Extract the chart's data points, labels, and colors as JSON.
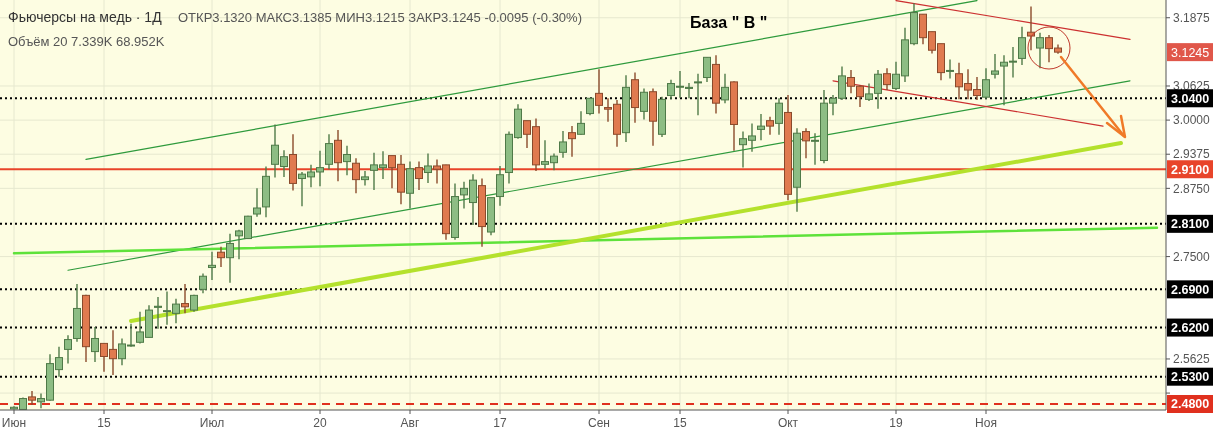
{
  "chart_data": {
    "type": "candlestick",
    "title": "Фьючерсы на медь · 1Д",
    "subtitle": "ОТКР3.1320 МАКС3.1385 МИН3.1215 ЗАКР3.1245 -0.0095 (-0.30%)",
    "annotations": [
      "База  \" В \"",
      "Объём 20 7.339K 68.952K",
      "3.1245"
    ],
    "categories": [
      "Июн",
      null,
      null,
      null,
      null,
      null,
      null,
      null,
      null,
      null,
      "15",
      null,
      null,
      null,
      null,
      null,
      null,
      null,
      null,
      null,
      null,
      null,
      "Июл",
      null,
      null,
      null,
      null,
      null,
      null,
      null,
      null,
      null,
      null,
      null,
      "20",
      null,
      null,
      null,
      null,
      null,
      null,
      null,
      null,
      null,
      "Авг",
      null,
      null,
      null,
      null,
      null,
      null,
      null,
      null,
      null,
      "17",
      null,
      null,
      null,
      null,
      null,
      null,
      null,
      null,
      null,
      null,
      "Сен",
      null,
      null,
      null,
      null,
      null,
      null,
      null,
      null,
      "15",
      null,
      null,
      null,
      null,
      null,
      null,
      null,
      null,
      null,
      null,
      null,
      "Окт",
      null,
      null,
      null,
      null,
      null,
      null,
      null,
      null,
      null,
      null,
      null,
      "19",
      null,
      null,
      null,
      null,
      null,
      null,
      null,
      null,
      null,
      "Ноя",
      null,
      null,
      null,
      null,
      null,
      null,
      null,
      null,
      null,
      null,
      null,
      null,
      null,
      null,
      null,
      null,
      null,
      null,
      null
    ],
    "ohlc": [
      [
        2.471,
        2.476,
        2.47,
        2.474
      ],
      [
        2.47,
        2.492,
        2.47,
        2.49
      ],
      [
        2.493,
        2.504,
        2.478,
        2.487
      ],
      [
        2.484,
        2.499,
        2.472,
        2.49
      ],
      [
        2.487,
        2.571,
        2.486,
        2.554
      ],
      [
        2.543,
        2.585,
        2.53,
        2.565
      ],
      [
        2.58,
        2.606,
        2.554,
        2.598
      ],
      [
        2.6,
        2.7,
        2.594,
        2.655
      ],
      [
        2.679,
        2.68,
        2.557,
        2.585
      ],
      [
        2.576,
        2.621,
        2.557,
        2.6
      ],
      [
        2.591,
        2.591,
        2.539,
        2.567
      ],
      [
        2.58,
        2.615,
        2.533,
        2.563
      ],
      [
        2.563,
        2.6,
        2.551,
        2.59
      ],
      [
        2.587,
        2.627,
        2.585,
        2.588
      ],
      [
        2.593,
        2.649,
        2.591,
        2.612
      ],
      [
        2.602,
        2.661,
        2.602,
        2.652
      ],
      [
        2.657,
        2.676,
        2.618,
        2.659
      ],
      [
        2.65,
        2.686,
        2.625,
        2.651
      ],
      [
        2.646,
        2.673,
        2.628,
        2.663
      ],
      [
        2.664,
        2.7,
        2.646,
        2.658
      ],
      [
        2.652,
        2.68,
        2.649,
        2.679
      ],
      [
        2.69,
        2.719,
        2.683,
        2.714
      ],
      [
        2.73,
        2.759,
        2.707,
        2.734
      ],
      [
        2.758,
        2.768,
        2.731,
        2.748
      ],
      [
        2.748,
        2.792,
        2.702,
        2.774
      ],
      [
        2.788,
        2.799,
        2.745,
        2.797
      ],
      [
        2.783,
        2.825,
        2.782,
        2.824
      ],
      [
        2.828,
        2.875,
        2.823,
        2.839
      ],
      [
        2.841,
        2.915,
        2.822,
        2.897
      ],
      [
        2.919,
        2.992,
        2.895,
        2.954
      ],
      [
        2.915,
        2.945,
        2.896,
        2.933
      ],
      [
        2.937,
        2.974,
        2.871,
        2.884
      ],
      [
        2.893,
        2.905,
        2.842,
        2.901
      ],
      [
        2.896,
        2.918,
        2.877,
        2.905
      ],
      [
        2.905,
        2.944,
        2.879,
        2.913
      ],
      [
        2.919,
        2.974,
        2.91,
        2.957
      ],
      [
        2.963,
        2.982,
        2.888,
        2.922
      ],
      [
        2.924,
        2.953,
        2.899,
        2.937
      ],
      [
        2.921,
        2.93,
        2.866,
        2.891
      ],
      [
        2.891,
        2.907,
        2.88,
        2.896
      ],
      [
        2.908,
        2.94,
        2.872,
        2.918
      ],
      [
        2.913,
        2.943,
        2.892,
        2.918
      ],
      [
        2.935,
        2.935,
        2.875,
        2.913
      ],
      [
        2.919,
        2.936,
        2.846,
        2.868
      ],
      [
        2.866,
        2.924,
        2.838,
        2.911
      ],
      [
        2.913,
        2.924,
        2.872,
        2.893
      ],
      [
        2.904,
        2.939,
        2.885,
        2.916
      ],
      [
        2.916,
        2.928,
        2.884,
        2.91
      ],
      [
        2.918,
        2.918,
        2.781,
        2.792
      ],
      [
        2.785,
        2.884,
        2.781,
        2.86
      ],
      [
        2.863,
        2.887,
        2.838,
        2.875
      ],
      [
        2.849,
        2.901,
        2.808,
        2.89
      ],
      [
        2.88,
        2.893,
        2.768,
        2.805
      ],
      [
        2.795,
        2.858,
        2.789,
        2.858
      ],
      [
        2.86,
        2.916,
        2.843,
        2.9
      ],
      [
        2.904,
        2.979,
        2.884,
        2.974
      ],
      [
        2.968,
        3.029,
        2.966,
        3.02
      ],
      [
        2.999,
        2.999,
        2.949,
        2.974
      ],
      [
        2.988,
        3.003,
        2.907,
        2.918
      ],
      [
        2.919,
        2.963,
        2.911,
        2.924
      ],
      [
        2.922,
        2.939,
        2.908,
        2.934
      ],
      [
        2.941,
        2.98,
        2.931,
        2.96
      ],
      [
        2.977,
        2.989,
        2.933,
        2.966
      ],
      [
        2.974,
        3.016,
        2.973,
        2.994
      ],
      [
        3.012,
        3.04,
        3.009,
        3.04
      ],
      [
        3.049,
        3.093,
        3.012,
        3.027
      ],
      [
        3.023,
        3.04,
        2.997,
        3.02
      ],
      [
        3.029,
        3.037,
        2.951,
        2.974
      ],
      [
        2.977,
        3.082,
        2.96,
        3.06
      ],
      [
        3.074,
        3.087,
        2.995,
        3.023
      ],
      [
        3.016,
        3.058,
        3.001,
        3.051
      ],
      [
        3.052,
        3.058,
        2.953,
        2.998
      ],
      [
        2.974,
        3.043,
        2.969,
        3.038
      ],
      [
        3.045,
        3.074,
        3.038,
        3.067
      ],
      [
        3.061,
        3.09,
        3.041,
        3.062
      ],
      [
        3.058,
        3.068,
        3.04,
        3.06
      ],
      [
        3.069,
        3.085,
        3.009,
        3.07
      ],
      [
        3.078,
        3.115,
        3.07,
        3.115
      ],
      [
        3.102,
        3.119,
        3.012,
        3.031
      ],
      [
        3.037,
        3.085,
        3.031,
        3.06
      ],
      [
        3.07,
        3.071,
        2.944,
        2.992
      ],
      [
        2.955,
        2.979,
        2.913,
        2.966
      ],
      [
        2.963,
        2.994,
        2.942,
        2.971
      ],
      [
        2.983,
        3.011,
        2.963,
        2.989
      ],
      [
        2.999,
        3.006,
        2.973,
        2.989
      ],
      [
        2.994,
        3.04,
        2.973,
        3.031
      ],
      [
        3.014,
        3.046,
        2.853,
        2.864
      ],
      [
        2.877,
        2.985,
        2.832,
        2.976
      ],
      [
        2.979,
        2.985,
        2.93,
        2.962
      ],
      [
        2.963,
        2.976,
        2.918,
        2.963
      ],
      [
        2.926,
        3.055,
        2.921,
        3.031
      ],
      [
        3.031,
        3.046,
        3.009,
        3.04
      ],
      [
        3.04,
        3.098,
        3.037,
        3.081
      ],
      [
        3.078,
        3.092,
        3.049,
        3.062
      ],
      [
        3.062,
        3.064,
        3.024,
        3.043
      ],
      [
        3.038,
        3.067,
        3.035,
        3.048
      ],
      [
        3.049,
        3.092,
        3.021,
        3.084
      ],
      [
        3.085,
        3.095,
        3.055,
        3.065
      ],
      [
        3.058,
        3.107,
        3.055,
        3.084
      ],
      [
        3.081,
        3.169,
        3.07,
        3.147
      ],
      [
        3.14,
        3.214,
        3.137,
        3.197
      ],
      [
        3.194,
        3.194,
        3.139,
        3.151
      ],
      [
        3.162,
        3.162,
        3.122,
        3.128
      ],
      [
        3.14,
        3.14,
        3.073,
        3.087
      ],
      [
        3.09,
        3.111,
        3.076,
        3.091
      ],
      [
        3.085,
        3.105,
        3.038,
        3.061
      ],
      [
        3.067,
        3.093,
        3.038,
        3.055
      ],
      [
        3.056,
        3.079,
        3.037,
        3.045
      ],
      [
        3.042,
        3.095,
        3.038,
        3.074
      ],
      [
        3.084,
        3.121,
        3.076,
        3.09
      ],
      [
        3.099,
        3.119,
        3.027,
        3.106
      ],
      [
        3.107,
        3.134,
        3.078,
        3.108
      ],
      [
        3.113,
        3.171,
        3.101,
        3.151
      ],
      [
        3.161,
        3.208,
        3.128,
        3.154
      ],
      [
        3.132,
        3.16,
        3.095,
        3.151
      ],
      [
        3.151,
        3.156,
        3.106,
        3.131
      ],
      [
        3.132,
        3.1385,
        3.1215,
        3.1245
      ],
      null,
      null,
      null,
      null,
      null,
      null,
      null,
      null,
      null,
      null,
      null
    ],
    "series": [
      {
        "type": "line",
        "color": "#2e9a3c",
        "values": [
          null,
          null,
          null,
          null,
          null,
          null,
          null,
          null,
          2.928,
          null,
          null,
          null,
          null,
          null,
          null,
          null,
          null,
          null,
          null,
          null,
          null,
          null,
          null,
          null,
          null,
          null,
          null,
          null,
          null,
          null,
          null,
          null,
          null,
          null,
          null,
          null,
          null,
          null,
          null,
          null,
          null,
          null,
          null,
          null,
          null,
          null,
          null,
          null,
          null,
          null,
          null,
          null,
          null,
          null,
          null,
          null,
          null,
          null,
          null,
          null,
          null,
          null,
          null,
          null,
          null,
          null,
          null,
          null,
          null,
          null,
          null,
          null,
          null,
          null,
          null,
          null,
          null,
          null,
          null,
          null,
          null,
          null,
          null,
          null,
          null,
          null,
          null,
          null,
          null,
          null,
          null,
          null,
          null,
          null,
          null,
          null,
          null,
          null,
          null,
          null,
          null,
          null,
          null,
          null,
          null,
          null,
          null,
          3.219,
          null,
          null,
          null,
          null,
          null,
          null,
          null,
          null,
          null,
          null,
          null,
          null,
          null,
          null,
          null,
          null,
          null,
          null,
          null,
          null
        ]
      },
      {
        "type": "line",
        "color": "#2e9a3c",
        "values": [
          null,
          null,
          null,
          null,
          null,
          null,
          2.725,
          null,
          null,
          null,
          null,
          null,
          null,
          null,
          null,
          null,
          null,
          null,
          null,
          null,
          null,
          null,
          null,
          null,
          null,
          null,
          null,
          null,
          null,
          null,
          null,
          null,
          null,
          null,
          null,
          null,
          null,
          null,
          null,
          null,
          null,
          null,
          null,
          null,
          null,
          null,
          null,
          null,
          null,
          null,
          null,
          null,
          null,
          null,
          null,
          null,
          null,
          null,
          null,
          null,
          null,
          null,
          null,
          null,
          null,
          null,
          null,
          null,
          null,
          null,
          null,
          null,
          null,
          null,
          null,
          null,
          null,
          null,
          null,
          null,
          null,
          null,
          null,
          null,
          null,
          null,
          null,
          null,
          null,
          null,
          null,
          null,
          null,
          null,
          null,
          null,
          null,
          null,
          null,
          null,
          null,
          null,
          null,
          null,
          null,
          null,
          null,
          null,
          null,
          null,
          null,
          null,
          null,
          null,
          null,
          null,
          null,
          null,
          null,
          null,
          null,
          null,
          null,
          null,
          3.072,
          null,
          null,
          null
        ]
      },
      {
        "type": "line",
        "color": "#5ee23a",
        "values": [
          2.756,
          null,
          null,
          null,
          null,
          null,
          null,
          null,
          null,
          null,
          null,
          null,
          null,
          null,
          null,
          null,
          null,
          null,
          null,
          null,
          null,
          null,
          null,
          null,
          null,
          null,
          null,
          null,
          null,
          null,
          null,
          null,
          null,
          null,
          null,
          null,
          null,
          null,
          null,
          null,
          null,
          null,
          null,
          null,
          null,
          null,
          null,
          null,
          null,
          null,
          null,
          null,
          null,
          null,
          null,
          null,
          null,
          null,
          null,
          null,
          null,
          null,
          null,
          null,
          null,
          null,
          null,
          null,
          null,
          null,
          null,
          null,
          null,
          null,
          null,
          null,
          null,
          null,
          null,
          null,
          null,
          null,
          null,
          null,
          null,
          null,
          null,
          null,
          null,
          null,
          null,
          null,
          null,
          null,
          null,
          null,
          null,
          null,
          null,
          null,
          null,
          null,
          null,
          null,
          null,
          null,
          null,
          null,
          null,
          null,
          null,
          null,
          null,
          null,
          null,
          null,
          null,
          null,
          null,
          null,
          null,
          null,
          null,
          null,
          null,
          null,
          null,
          2.803
        ]
      },
      {
        "type": "line",
        "color": "#b4e12c",
        "values": [
          null,
          null,
          null,
          null,
          null,
          null,
          null,
          null,
          null,
          null,
          null,
          null,
          null,
          2.632,
          null,
          null,
          null,
          null,
          null,
          null,
          null,
          null,
          null,
          null,
          null,
          null,
          null,
          null,
          null,
          null,
          null,
          null,
          null,
          null,
          null,
          null,
          null,
          null,
          null,
          null,
          null,
          null,
          null,
          null,
          null,
          null,
          null,
          null,
          null,
          null,
          null,
          null,
          null,
          null,
          null,
          null,
          null,
          null,
          null,
          null,
          null,
          null,
          null,
          null,
          null,
          null,
          null,
          null,
          null,
          null,
          null,
          null,
          null,
          null,
          null,
          null,
          null,
          null,
          null,
          null,
          null,
          null,
          null,
          null,
          null,
          null,
          null,
          null,
          null,
          null,
          null,
          null,
          null,
          null,
          null,
          null,
          null,
          null,
          null,
          null,
          null,
          null,
          null,
          null,
          null,
          null,
          null,
          null,
          null,
          null,
          null,
          null,
          null,
          null,
          null,
          null,
          null,
          null,
          null,
          null,
          null,
          null,
          null,
          2.958,
          null,
          null,
          null,
          null
        ]
      },
      {
        "type": "line",
        "color": "#cc3030",
        "values": [
          null,
          null,
          null,
          null,
          null,
          null,
          null,
          null,
          null,
          null,
          null,
          null,
          null,
          null,
          null,
          null,
          null,
          null,
          null,
          null,
          null,
          null,
          null,
          null,
          null,
          null,
          null,
          null,
          null,
          null,
          null,
          null,
          null,
          null,
          null,
          null,
          null,
          null,
          null,
          null,
          null,
          null,
          null,
          null,
          null,
          null,
          null,
          null,
          null,
          null,
          null,
          null,
          null,
          null,
          null,
          null,
          null,
          null,
          null,
          null,
          null,
          null,
          null,
          null,
          null,
          null,
          null,
          null,
          null,
          null,
          null,
          null,
          null,
          null,
          null,
          null,
          null,
          null,
          null,
          null,
          null,
          null,
          null,
          null,
          null,
          null,
          null,
          null,
          null,
          null,
          null,
          null,
          null,
          null,
          null,
          null,
          null,
          null,
          3.219,
          null,
          null,
          null,
          null,
          null,
          null,
          null,
          null,
          null,
          null,
          null,
          null,
          null,
          null,
          null,
          null,
          null,
          null,
          null,
          null,
          null,
          null,
          null,
          null,
          null,
          3.148,
          null,
          null,
          null
        ]
      },
      {
        "type": "line",
        "color": "#cc3030",
        "values": [
          null,
          null,
          null,
          null,
          null,
          null,
          null,
          null,
          null,
          null,
          null,
          null,
          null,
          null,
          null,
          null,
          null,
          null,
          null,
          null,
          null,
          null,
          null,
          null,
          null,
          null,
          null,
          null,
          null,
          null,
          null,
          null,
          null,
          null,
          null,
          null,
          null,
          null,
          null,
          null,
          null,
          null,
          null,
          null,
          null,
          null,
          null,
          null,
          null,
          null,
          null,
          null,
          null,
          null,
          null,
          null,
          null,
          null,
          null,
          null,
          null,
          null,
          null,
          null,
          null,
          null,
          null,
          null,
          null,
          null,
          null,
          null,
          null,
          null,
          null,
          null,
          null,
          null,
          null,
          null,
          null,
          null,
          null,
          null,
          null,
          null,
          null,
          null,
          null,
          null,
          null,
          3.072,
          null,
          null,
          null,
          null,
          null,
          null,
          null,
          null,
          null,
          null,
          null,
          null,
          null,
          null,
          null,
          null,
          null,
          null,
          null,
          null,
          null,
          null,
          null,
          null,
          null,
          null,
          null,
          null,
          null,
          2.989,
          null,
          null,
          null,
          null,
          null,
          null
        ]
      }
    ],
    "ylim": [
      2.469,
      3.22
    ],
    "yticks": [
      {
        "value": 2.5,
        "label": null
      },
      {
        "value": 2.5625,
        "label": "2.5625"
      },
      {
        "value": 2.75,
        "label": "2.7500"
      },
      {
        "value": 2.875,
        "label": "2.8750"
      },
      {
        "value": 2.9375,
        "label": "2.9375"
      },
      {
        "value": 3,
        "label": "3.0000"
      },
      {
        "value": 3.0625,
        "label": "3.0625"
      },
      {
        "value": 3.1875,
        "label": "3.1875"
      }
    ],
    "grid": true,
    "ref_lines": [
      {
        "axis": "y",
        "value": 3.04,
        "label": "3.0400",
        "color": "#000000",
        "line_style": "dotted"
      },
      {
        "axis": "y",
        "value": 2.91,
        "label": "2.9100",
        "color": "#e8442a",
        "line_style": "solid"
      },
      {
        "axis": "y",
        "value": 2.81,
        "label": "2.8100",
        "color": "#000000",
        "line_style": "dotted"
      },
      {
        "axis": "y",
        "value": 2.69,
        "label": "2.6900",
        "color": "#000000",
        "line_style": "dotted"
      },
      {
        "axis": "y",
        "value": 2.62,
        "label": "2.6200",
        "color": "#000000",
        "line_style": "dotted"
      },
      {
        "axis": "y",
        "value": 2.53,
        "label": "2.5300",
        "color": "#000000",
        "line_style": "dotted"
      },
      {
        "axis": "y",
        "value": 2.48,
        "label": "2.4800",
        "color": "#e0301e",
        "line_style": "dashed"
      }
    ]
  }
}
